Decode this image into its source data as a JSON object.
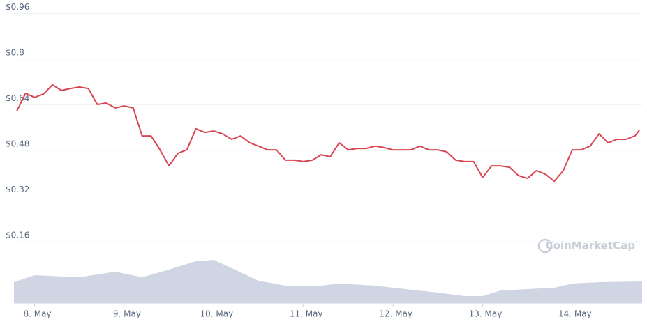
{
  "chart_data": {
    "type": "line",
    "watermark": "CoinMarketCap",
    "xlim": [
      7.77,
      14.78
    ],
    "xticks": [
      {
        "value": 8,
        "label": "8. May"
      },
      {
        "value": 9,
        "label": "9. May"
      },
      {
        "value": 10,
        "label": "10. May"
      },
      {
        "value": 11,
        "label": "11. May"
      },
      {
        "value": 12,
        "label": "12. May"
      },
      {
        "value": 13,
        "label": "13. May"
      },
      {
        "value": 14,
        "label": "14. May"
      }
    ],
    "ylim": [
      0,
      1.0
    ],
    "yticks": [
      {
        "value": 0.16,
        "label": "$0.16"
      },
      {
        "value": 0.32,
        "label": "$0.32"
      },
      {
        "value": 0.48,
        "label": "$0.48"
      },
      {
        "value": 0.64,
        "label": "$0.64"
      },
      {
        "value": 0.8,
        "label": "$0.8"
      },
      {
        "value": 0.96,
        "label": "$0.96"
      }
    ],
    "y2lim": [
      0,
      100
    ],
    "grid": true,
    "series": [
      {
        "color": "#d94452",
        "x": [
          7.8,
          7.9,
          8.0,
          8.1,
          8.2,
          8.3,
          8.4,
          8.5,
          8.6,
          8.7,
          8.8,
          8.9,
          9.0,
          9.1,
          9.2,
          9.3,
          9.4,
          9.5,
          9.6,
          9.7,
          9.8,
          9.9,
          10.0,
          10.1,
          10.2,
          10.3,
          10.4,
          10.5,
          10.6,
          10.7,
          10.8,
          10.9,
          11.0,
          11.1,
          11.2,
          11.3,
          11.4,
          11.5,
          11.6,
          11.7,
          11.8,
          11.9,
          12.0,
          12.1,
          12.2,
          12.3,
          12.4,
          12.5,
          12.6,
          12.7,
          12.8,
          12.9,
          13.0,
          13.1,
          13.2,
          13.3,
          13.4,
          13.5,
          13.6,
          13.7,
          13.8,
          13.9,
          14.0,
          14.1,
          14.2,
          14.3,
          14.4,
          14.5,
          14.6,
          14.7,
          14.75
        ],
        "values": [
          0.617,
          0.68,
          0.666,
          0.678,
          0.71,
          0.69,
          0.697,
          0.702,
          0.697,
          0.641,
          0.646,
          0.629,
          0.636,
          0.629,
          0.531,
          0.531,
          0.482,
          0.426,
          0.47,
          0.482,
          0.556,
          0.543,
          0.548,
          0.538,
          0.519,
          0.531,
          0.507,
          0.495,
          0.482,
          0.482,
          0.446,
          0.446,
          0.441,
          0.446,
          0.465,
          0.458,
          0.507,
          0.482,
          0.487,
          0.487,
          0.495,
          0.49,
          0.482,
          0.482,
          0.482,
          0.495,
          0.482,
          0.482,
          0.475,
          0.446,
          0.441,
          0.441,
          0.385,
          0.426,
          0.426,
          0.421,
          0.392,
          0.382,
          0.409,
          0.397,
          0.372,
          0.409,
          0.482,
          0.482,
          0.495,
          0.538,
          0.507,
          0.519,
          0.519,
          0.531,
          0.551
        ]
      },
      {
        "color": "#cfd5e3",
        "axis": "y2",
        "x": [
          7.77,
          8.0,
          8.5,
          8.9,
          9.2,
          9.5,
          9.8,
          10.0,
          10.2,
          10.5,
          10.8,
          11.2,
          11.4,
          11.8,
          12.0,
          12.5,
          12.8,
          13.0,
          13.2,
          13.5,
          13.8,
          14.0,
          14.3,
          14.78
        ],
        "values": [
          30,
          40,
          37,
          45,
          37,
          48,
          60,
          62,
          50,
          32,
          25,
          25,
          28,
          25,
          22,
          15,
          10,
          10,
          18,
          20,
          22,
          28,
          30,
          31
        ]
      }
    ]
  }
}
